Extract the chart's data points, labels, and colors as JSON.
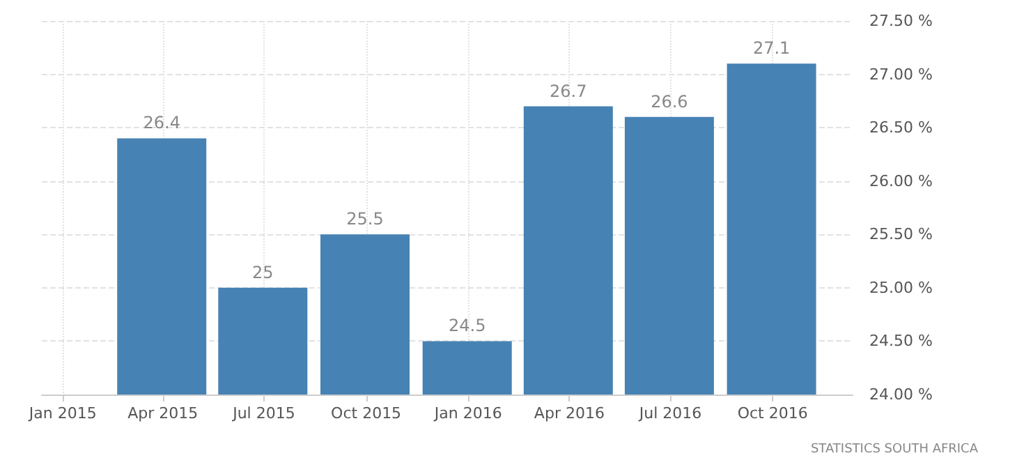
{
  "chart_data": {
    "type": "bar",
    "x": [
      "2015-03-31",
      "2015-06-30",
      "2015-09-30",
      "2015-12-31",
      "2016-03-31",
      "2016-06-30",
      "2016-09-30"
    ],
    "values": [
      26.4,
      25,
      25.5,
      24.5,
      26.7,
      26.6,
      27.1
    ],
    "color": "#4682b4",
    "data_labels": true,
    "xlim": [
      "2014-12-13",
      "2016-12-12"
    ],
    "xticks": [
      {
        "value": "2015-01-01",
        "label": "Jan 2015"
      },
      {
        "value": "2015-04-01",
        "label": "Apr 2015"
      },
      {
        "value": "2015-07-01",
        "label": "Jul 2015"
      },
      {
        "value": "2015-10-01",
        "label": "Oct 2015"
      },
      {
        "value": "2016-01-01",
        "label": "Jan 2016"
      },
      {
        "value": "2016-04-01",
        "label": "Apr 2016"
      },
      {
        "value": "2016-07-01",
        "label": "Jul 2016"
      },
      {
        "value": "2016-10-01",
        "label": "Oct 2016"
      }
    ],
    "ylim": [
      24,
      27.5
    ],
    "yticks": [
      {
        "value": 24,
        "label": "24.00 %"
      },
      {
        "value": 24.5,
        "label": "24.50 %"
      },
      {
        "value": 25,
        "label": "25.00 %"
      },
      {
        "value": 25.5,
        "label": "25.50 %"
      },
      {
        "value": 26,
        "label": "26.00 %"
      },
      {
        "value": 26.5,
        "label": "26.50 %"
      },
      {
        "value": 27,
        "label": "27.00 %"
      },
      {
        "value": 27.5,
        "label": "27.50 %"
      }
    ],
    "grid": true,
    "annotations": [
      "STATISTICS SOUTH AFRICA"
    ]
  }
}
